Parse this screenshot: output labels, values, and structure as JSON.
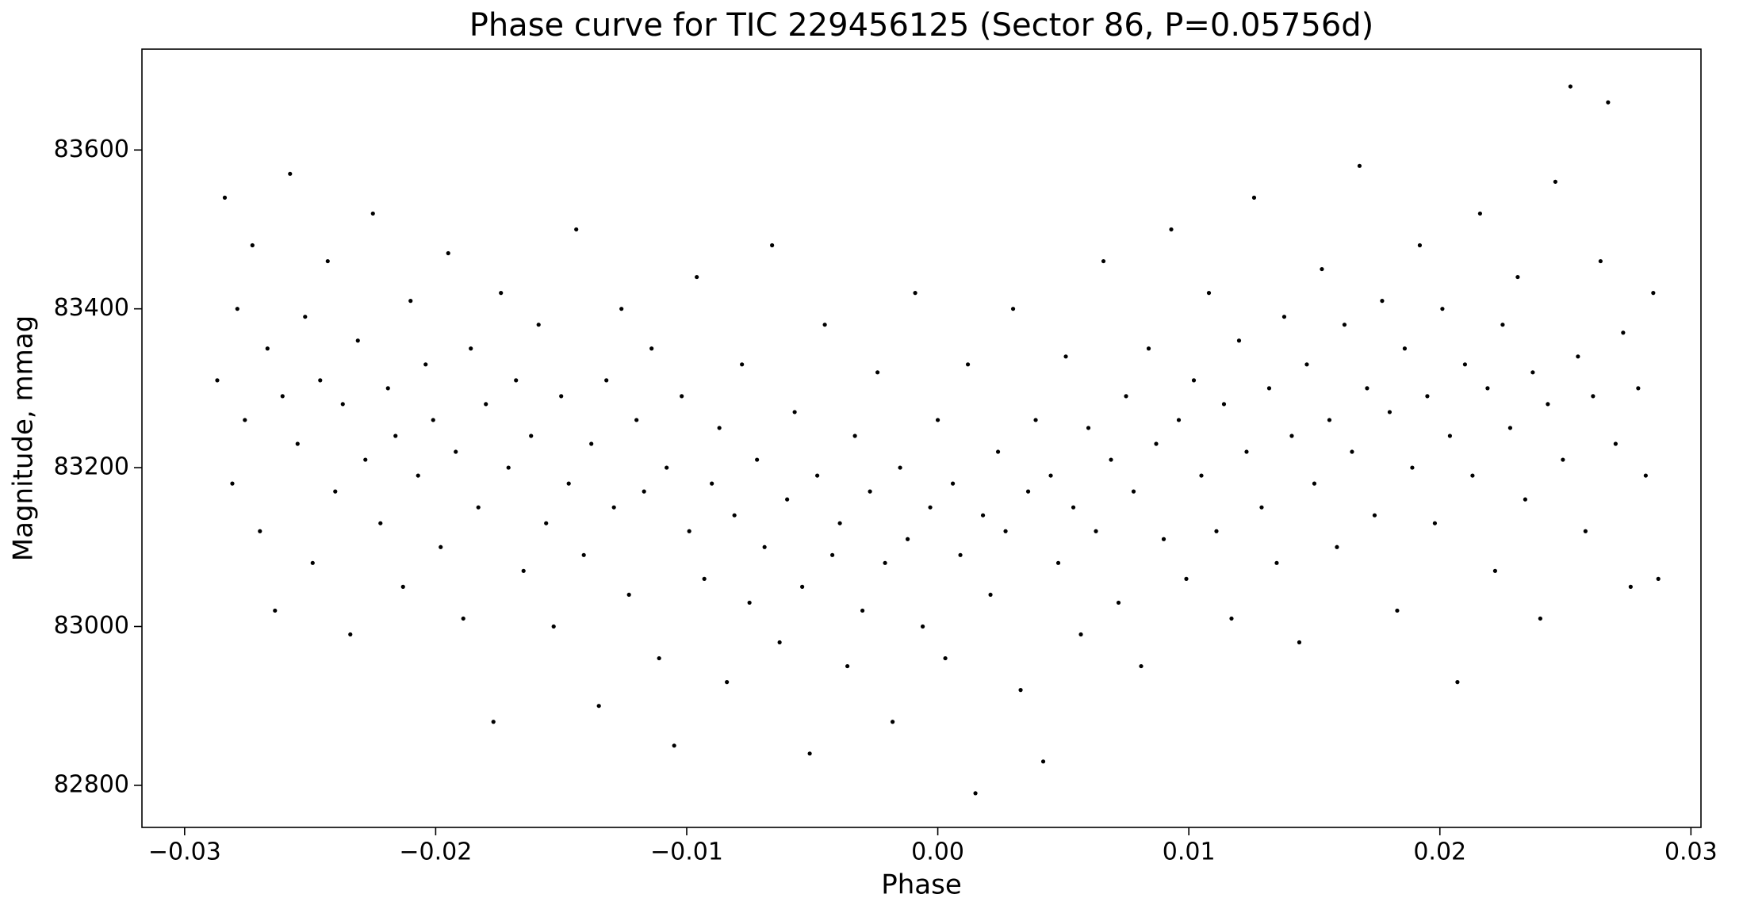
{
  "chart_data": {
    "type": "scatter",
    "title": "Phase curve for TIC 229456125 (Sector 86, P=0.05756d)",
    "x_label": "Phase",
    "y_label": "Magnitude, mmag",
    "color": "#000000",
    "xlim": [
      -0.0317,
      0.0304
    ],
    "ylim": [
      82747,
      83727
    ],
    "xticks": [
      {
        "value": -0.03,
        "label": "−0.03"
      },
      {
        "value": -0.02,
        "label": "−0.02"
      },
      {
        "value": -0.01,
        "label": "−0.01"
      },
      {
        "value": 0,
        "label": "0.00"
      },
      0.01,
      0.02,
      0.03
    ],
    "yticks": [
      82800,
      83000,
      83200,
      83400,
      83600
    ],
    "x": [
      -0.0287,
      -0.0284,
      -0.0281,
      -0.0279,
      -0.0276,
      -0.0273,
      -0.027,
      -0.0267,
      -0.0264,
      -0.0261,
      -0.0258,
      -0.0255,
      -0.0252,
      -0.0249,
      -0.0246,
      -0.0243,
      -0.024,
      -0.0237,
      -0.0234,
      -0.0231,
      -0.0228,
      -0.0225,
      -0.0222,
      -0.0219,
      -0.0216,
      -0.0213,
      -0.021,
      -0.0207,
      -0.0204,
      -0.0201,
      -0.0198,
      -0.0195,
      -0.0192,
      -0.0189,
      -0.0186,
      -0.0183,
      -0.018,
      -0.0177,
      -0.0174,
      -0.0171,
      -0.0168,
      -0.0165,
      -0.0162,
      -0.0159,
      -0.0156,
      -0.0153,
      -0.015,
      -0.0147,
      -0.0144,
      -0.0141,
      -0.0138,
      -0.0135,
      -0.0132,
      -0.0129,
      -0.0126,
      -0.0123,
      -0.012,
      -0.0117,
      -0.0114,
      -0.0111,
      -0.0108,
      -0.0105,
      -0.0102,
      -0.0099,
      -0.0096,
      -0.0093,
      -0.009,
      -0.0087,
      -0.0084,
      -0.0081,
      -0.0078,
      -0.0075,
      -0.0072,
      -0.0069,
      -0.0066,
      -0.0063,
      -0.006,
      -0.0057,
      -0.0054,
      -0.0051,
      -0.0048,
      -0.0045,
      -0.0042,
      -0.0039,
      -0.0036,
      -0.0033,
      -0.003,
      -0.0027,
      -0.0024,
      -0.0021,
      -0.0018,
      -0.0015,
      -0.0012,
      -0.0009,
      -0.0006,
      -0.0003,
      0,
      0.0003,
      0.0006,
      0.0009,
      0.0012,
      0.0015,
      0.0018,
      0.0021,
      0.0024,
      0.0027,
      0.003,
      0.0033,
      0.0036,
      0.0039,
      0.0042,
      0.0045,
      0.0048,
      0.0051,
      0.0054,
      0.0057,
      0.006,
      0.0063,
      0.0066,
      0.0069,
      0.0072,
      0.0075,
      0.0078,
      0.0081,
      0.0084,
      0.0087,
      0.009,
      0.0093,
      0.0096,
      0.0099,
      0.0102,
      0.0105,
      0.0108,
      0.0111,
      0.0114,
      0.0117,
      0.012,
      0.0123,
      0.0126,
      0.0129,
      0.0132,
      0.0135,
      0.0138,
      0.0141,
      0.0144,
      0.0147,
      0.015,
      0.0153,
      0.0156,
      0.0159,
      0.0162,
      0.0165,
      0.0168,
      0.0171,
      0.0174,
      0.0177,
      0.018,
      0.0183,
      0.0186,
      0.0189,
      0.0192,
      0.0195,
      0.0198,
      0.0201,
      0.0204,
      0.0207,
      0.021,
      0.0213,
      0.0216,
      0.0219,
      0.0222,
      0.0225,
      0.0228,
      0.0231,
      0.0234,
      0.0237,
      0.024,
      0.0243,
      0.0246,
      0.0249,
      0.0252,
      0.0255,
      0.0258,
      0.0261,
      0.0264,
      0.0267,
      0.027,
      0.0273,
      0.0276,
      0.0279,
      0.0282,
      0.0285,
      0.0287
    ],
    "values": [
      83310,
      83540,
      83180,
      83400,
      83260,
      83480,
      83120,
      83350,
      83020,
      83290,
      83570,
      83230,
      83390,
      83080,
      83310,
      83460,
      83170,
      83280,
      82990,
      83360,
      83210,
      83520,
      83130,
      83300,
      83240,
      83050,
      83410,
      83190,
      83330,
      83260,
      83100,
      83470,
      83220,
      83010,
      83350,
      83150,
      83280,
      82880,
      83420,
      83200,
      83310,
      83070,
      83240,
      83380,
      83130,
      83000,
      83290,
      83180,
      83500,
      83090,
      83230,
      82900,
      83310,
      83150,
      83400,
      83040,
      83260,
      83170,
      83350,
      82960,
      83200,
      82850,
      83290,
      83120,
      83440,
      83060,
      83180,
      83250,
      82930,
      83140,
      83330,
      83030,
      83210,
      83100,
      83480,
      82980,
      83160,
      83270,
      83050,
      82840,
      83190,
      83380,
      83090,
      83130,
      82950,
      83240,
      83020,
      83170,
      83320,
      83080,
      82880,
      83200,
      83110,
      83420,
      83000,
      83150,
      83260,
      82960,
      83180,
      83090,
      83330,
      82790,
      83140,
      83040,
      83220,
      83120,
      83400,
      82920,
      83170,
      83260,
      82830,
      83190,
      83080,
      83340,
      83150,
      82990,
      83250,
      83120,
      83460,
      83210,
      83030,
      83290,
      83170,
      82950,
      83350,
      83230,
      83110,
      83500,
      83260,
      83060,
      83310,
      83190,
      83420,
      83120,
      83280,
      83010,
      83360,
      83220,
      83540,
      83150,
      83300,
      83080,
      83390,
      83240,
      82980,
      83330,
      83180,
      83450,
      83260,
      83100,
      83380,
      83220,
      83580,
      83300,
      83140,
      83410,
      83270,
      83020,
      83350,
      83200,
      83480,
      83290,
      83130,
      83400,
      83240,
      82930,
      83330,
      83190,
      83520,
      83300,
      83070,
      83380,
      83250,
      83440,
      83160,
      83320,
      83010,
      83280,
      83560,
      83210,
      83680,
      83340,
      83120,
      83290,
      83460,
      83660,
      83230,
      83370,
      83050,
      83300,
      83190,
      83420,
      83060
    ]
  }
}
